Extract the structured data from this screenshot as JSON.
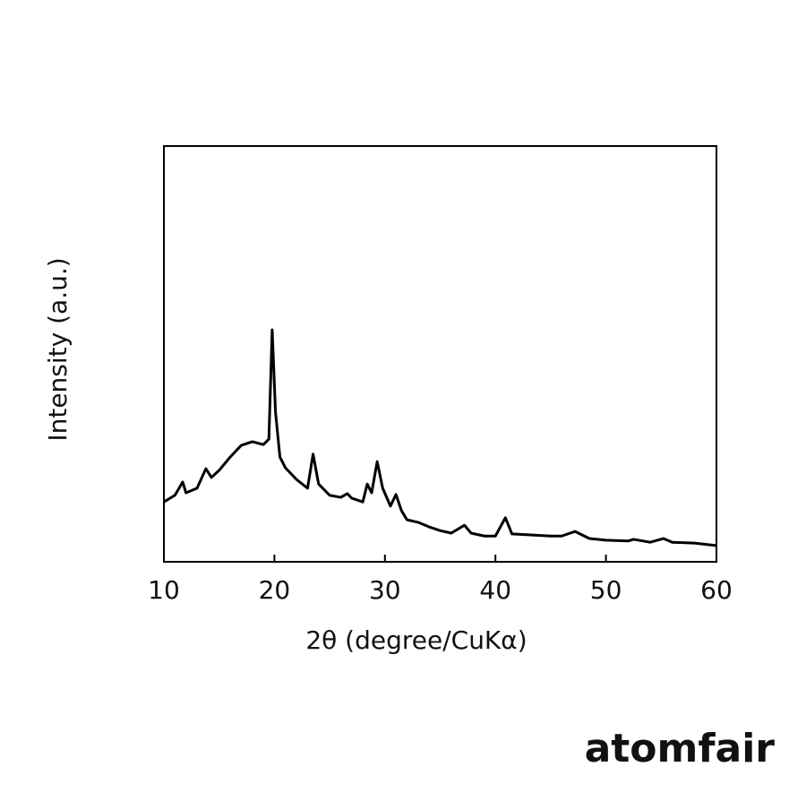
{
  "chart_data": {
    "type": "line",
    "x_label": "2θ (degree/CuKα)",
    "y_label": "Intensity (a.u.)",
    "x": [
      10,
      11,
      11.7,
      12,
      13,
      13.8,
      14.3,
      15,
      16,
      17,
      18,
      19,
      19.5,
      19.8,
      20.1,
      20.5,
      21,
      22,
      23,
      23.5,
      24,
      25,
      26,
      26.6,
      27,
      28,
      28.4,
      28.8,
      29.3,
      29.8,
      30.5,
      31,
      31.5,
      32,
      33,
      34,
      35,
      36,
      37.2,
      37.8,
      39,
      40,
      40.9,
      41.5,
      43,
      45,
      46,
      47.2,
      48.5,
      50,
      52,
      52.5,
      54,
      55.2,
      56,
      58,
      60
    ],
    "series": [
      {
        "color": "#000000",
        "values": [
          14.4,
          16,
          19.2,
          16.6,
          17.7,
          22.4,
          20.3,
          22,
          25.2,
          28,
          28.9,
          28.2,
          29.5,
          55.8,
          36,
          25.2,
          22.6,
          19.8,
          17.7,
          25.9,
          18.7,
          16,
          15.5,
          16.4,
          15.3,
          14.4,
          18.7,
          16.6,
          24.1,
          17.7,
          13.4,
          16.2,
          12.3,
          10.1,
          9.5,
          8.4,
          7.5,
          6.9,
          8.8,
          6.9,
          6.2,
          6.2,
          10.6,
          6.7,
          6.5,
          6.2,
          6.2,
          7.3,
          5.6,
          5.2,
          5,
          5.4,
          4.7,
          5.6,
          4.7,
          4.5,
          3.9
        ]
      }
    ],
    "xlim": [
      10,
      60
    ],
    "xticks": [
      10,
      20,
      30,
      40,
      50,
      60
    ],
    "ylim": [
      0,
      100
    ]
  },
  "watermark": "atomfair"
}
